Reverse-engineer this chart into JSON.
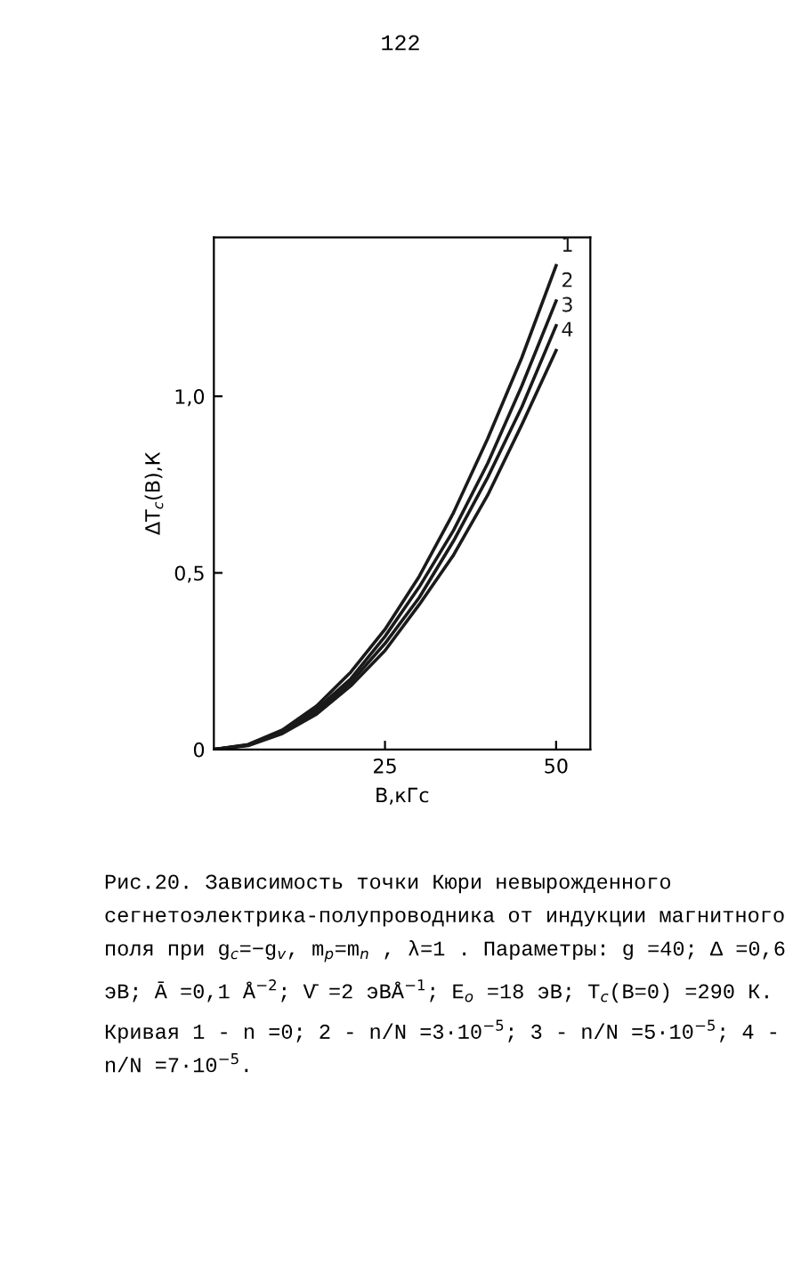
{
  "chart_data": {
    "type": "line",
    "xlabel": "B,кГс",
    "ylabel": "ΔT$_{c}$(B),К",
    "x": [
      0,
      5,
      10,
      15,
      20,
      25,
      30,
      35,
      40,
      45,
      50
    ],
    "series": [
      {
        "name": "1",
        "color": "#1a1a1a",
        "values": [
          0,
          0.014,
          0.055,
          0.123,
          0.219,
          0.34,
          0.49,
          0.67,
          0.88,
          1.11,
          1.37
        ]
      },
      {
        "name": "2",
        "color": "#1a1a1a",
        "values": [
          0,
          0.013,
          0.05,
          0.114,
          0.2,
          0.32,
          0.46,
          0.62,
          0.81,
          1.03,
          1.27
        ]
      },
      {
        "name": "3",
        "color": "#1a1a1a",
        "values": [
          0,
          0.012,
          0.048,
          0.108,
          0.19,
          0.3,
          0.43,
          0.59,
          0.77,
          0.97,
          1.2
        ]
      },
      {
        "name": "4",
        "color": "#1a1a1a",
        "values": [
          0,
          0.011,
          0.045,
          0.1,
          0.18,
          0.28,
          0.41,
          0.55,
          0.72,
          0.92,
          1.13
        ]
      }
    ],
    "xlim": [
      0,
      55
    ],
    "ylim": [
      0,
      1.45
    ],
    "xticks": [
      25,
      50
    ],
    "yticks": [
      0,
      {
        "value": 0.5,
        "label": "0,5"
      },
      {
        "value": 1.0,
        "label": "1,0"
      }
    ],
    "grid": false,
    "legend": false,
    "marker": "none",
    "line_style": "solid",
    "annotations": [
      "122",
      "Рис.20. Зависимость точки Кюри невырожденного сегнетоэлектрика-полупроводника от индукции магнитного поля при g$_{c}$=−g$_{v}$, m$_{p}$=m$_{n}$ , λ=1 . Параметры: g =40; Δ =0,6 эВ; Ā =0,1 Å$^{−2}$; V̄ =2 эВÅ$^{−1}$; E$_{o}$ =18 эВ; T$_{c}$(B=0) =290 К. Кривая 1 - n =0; 2 - n/N =3·10$^{−5}$; 3 - n/N =5·10$^{−5}$; 4 - n/N =7·10$^{−5}$."
    ]
  }
}
